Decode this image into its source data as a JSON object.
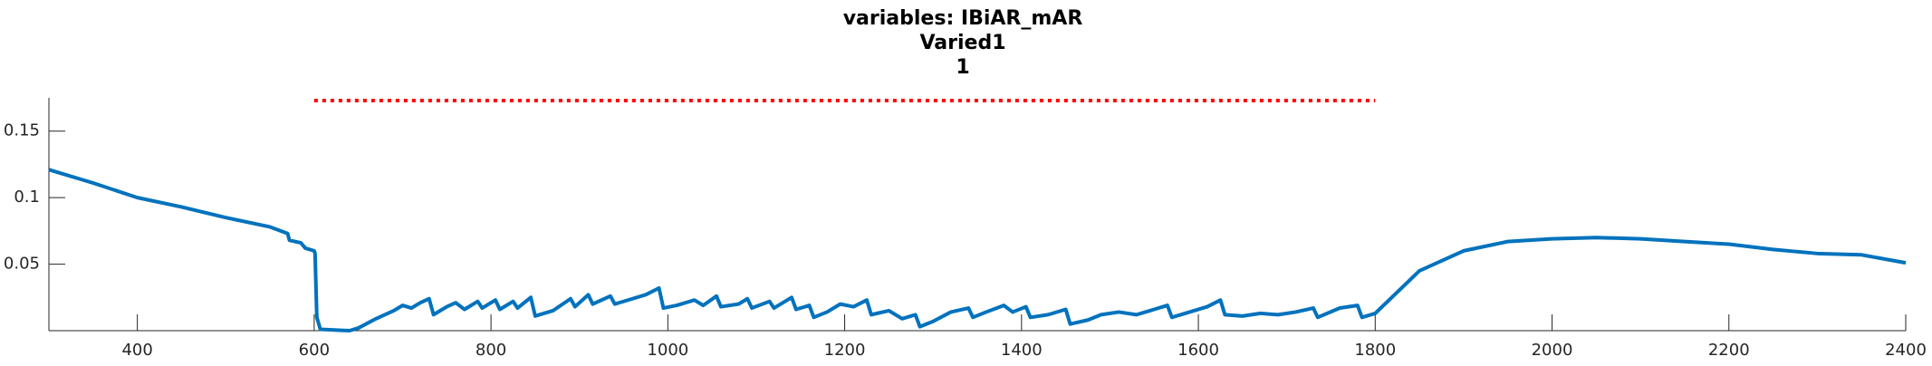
{
  "chart_data": {
    "type": "line",
    "title_lines": [
      "variables: IBiAR_mAR",
      "Varied1",
      "1"
    ],
    "xlim": [
      300,
      2400
    ],
    "ylim": [
      0,
      0.175
    ],
    "xticks": [
      400,
      600,
      800,
      1000,
      1200,
      1400,
      1600,
      1800,
      2000,
      2200,
      2400
    ],
    "yticks": [
      0.05,
      0.1,
      0.15
    ],
    "series": [
      {
        "color": "#0072bd",
        "dash": "solid",
        "x": [
          300,
          350,
          400,
          450,
          500,
          550,
          570,
          572,
          585,
          590,
          600,
          601,
          603,
          607,
          640,
          650,
          670,
          690,
          700,
          710,
          720,
          730,
          735,
          750,
          760,
          770,
          785,
          790,
          805,
          810,
          825,
          830,
          845,
          850,
          870,
          890,
          895,
          910,
          915,
          935,
          940,
          960,
          975,
          990,
          995,
          1010,
          1030,
          1040,
          1055,
          1060,
          1080,
          1090,
          1095,
          1115,
          1120,
          1140,
          1145,
          1160,
          1165,
          1180,
          1195,
          1210,
          1225,
          1230,
          1250,
          1265,
          1280,
          1285,
          1300,
          1320,
          1340,
          1345,
          1360,
          1380,
          1390,
          1405,
          1410,
          1430,
          1450,
          1455,
          1475,
          1490,
          1510,
          1530,
          1550,
          1565,
          1570,
          1590,
          1610,
          1625,
          1630,
          1650,
          1670,
          1690,
          1710,
          1730,
          1735,
          1760,
          1780,
          1785,
          1800,
          1850,
          1900,
          1950,
          2000,
          2050,
          2100,
          2150,
          2200,
          2250,
          2300,
          2350,
          2400
        ],
        "values": [
          0.121,
          0.111,
          0.1,
          0.093,
          0.085,
          0.078,
          0.073,
          0.068,
          0.066,
          0.062,
          0.06,
          0.058,
          0.01,
          0.001,
          0.0,
          0.002,
          0.009,
          0.015,
          0.019,
          0.017,
          0.021,
          0.024,
          0.012,
          0.018,
          0.021,
          0.016,
          0.022,
          0.017,
          0.023,
          0.016,
          0.022,
          0.017,
          0.025,
          0.011,
          0.015,
          0.024,
          0.018,
          0.027,
          0.02,
          0.026,
          0.02,
          0.024,
          0.027,
          0.032,
          0.017,
          0.019,
          0.023,
          0.019,
          0.026,
          0.018,
          0.02,
          0.024,
          0.017,
          0.022,
          0.017,
          0.025,
          0.016,
          0.019,
          0.01,
          0.014,
          0.02,
          0.018,
          0.023,
          0.012,
          0.015,
          0.009,
          0.012,
          0.003,
          0.007,
          0.014,
          0.017,
          0.01,
          0.014,
          0.019,
          0.014,
          0.018,
          0.01,
          0.012,
          0.016,
          0.005,
          0.008,
          0.012,
          0.014,
          0.012,
          0.016,
          0.019,
          0.01,
          0.014,
          0.018,
          0.023,
          0.012,
          0.011,
          0.013,
          0.012,
          0.014,
          0.017,
          0.01,
          0.017,
          0.019,
          0.01,
          0.013,
          0.045,
          0.06,
          0.067,
          0.069,
          0.07,
          0.069,
          0.067,
          0.065,
          0.061,
          0.058,
          0.057,
          0.051
        ]
      },
      {
        "color": "#ff0000",
        "dash": "dotted",
        "x": [
          600,
          1800
        ],
        "values": [
          0.173,
          0.173
        ]
      }
    ]
  }
}
